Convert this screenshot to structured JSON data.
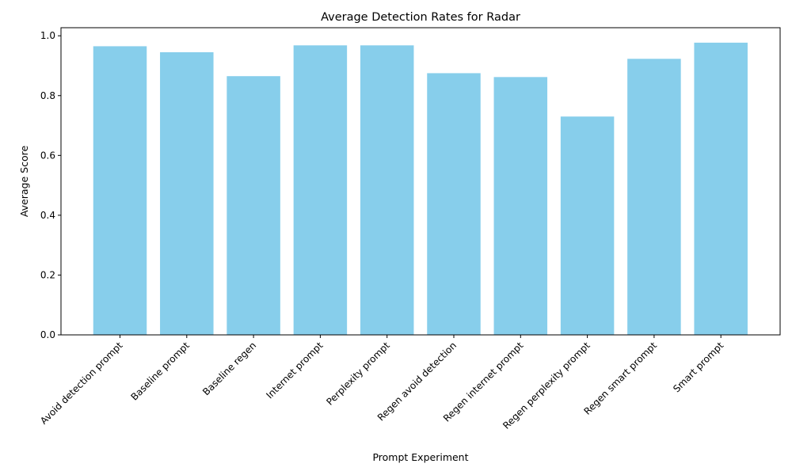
{
  "chart_data": {
    "type": "bar",
    "title": "Average Detection Rates for Radar",
    "xlabel": "Prompt Experiment",
    "ylabel": "Average Score",
    "categories": [
      "Avoid detection prompt",
      "Baseline prompt",
      "Baseline regen",
      "Internet prompt",
      "Perplexity prompt",
      "Regen avoid detection",
      "Regen internet prompt",
      "Regen perplexity prompt",
      "Regen smart prompt",
      "Smart prompt"
    ],
    "values": [
      0.965,
      0.945,
      0.865,
      0.968,
      0.968,
      0.875,
      0.862,
      0.73,
      0.923,
      0.977
    ],
    "ylim": [
      0,
      1.027
    ],
    "yticks": [
      0.0,
      0.2,
      0.4,
      0.6,
      0.8,
      1.0
    ],
    "ytick_labels": [
      "0.0",
      "0.2",
      "0.4",
      "0.6",
      "0.8",
      "1.0"
    ],
    "bar_color": "#87ceeb",
    "grid": false,
    "legend": "none"
  }
}
